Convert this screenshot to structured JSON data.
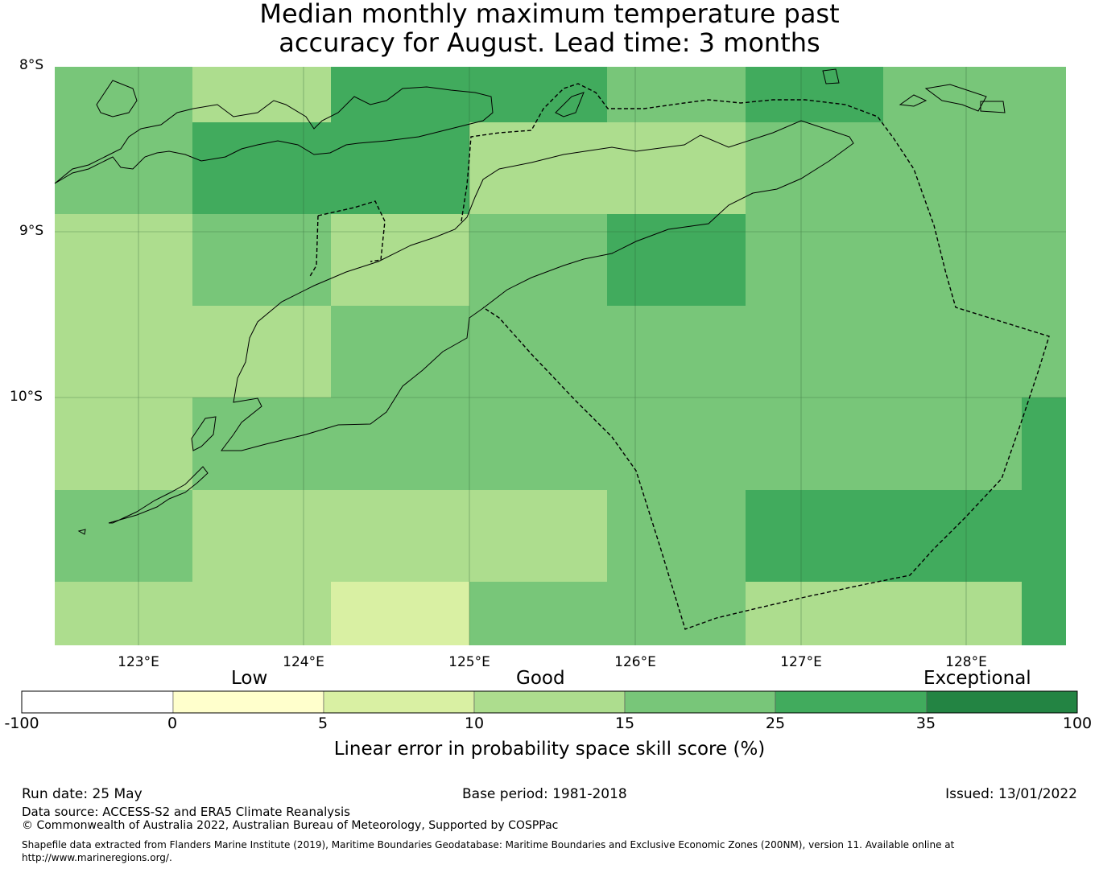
{
  "title": {
    "line1": "Median monthly maximum temperature past",
    "line2": "accuracy for August. Lead time: 3 months"
  },
  "map": {
    "lat_labels": [
      "8°S",
      "9°S",
      "10°S"
    ],
    "lon_labels": [
      "123°E",
      "124°E",
      "125°E",
      "126°E",
      "127°E",
      "128°E"
    ],
    "lat_range": [
      -11.5,
      -8.0
    ],
    "lon_range": [
      122.5,
      128.6
    ],
    "cell_lat_step": 0.5556,
    "cell_lon_step": 0.8333,
    "cell_values_classes_note_index": "row-major from north (top) to south; value = colour class index",
    "grid_class_rows": [
      [
        4,
        3,
        5,
        5,
        4,
        5,
        4,
        4
      ],
      [
        4,
        5,
        5,
        3,
        3,
        4,
        4,
        4
      ],
      [
        3,
        4,
        3,
        4,
        5,
        4,
        4,
        4
      ],
      [
        3,
        3,
        4,
        4,
        4,
        4,
        4,
        4
      ],
      [
        3,
        4,
        4,
        4,
        4,
        4,
        4,
        5
      ],
      [
        4,
        3,
        3,
        3,
        4,
        5,
        5,
        5
      ],
      [
        3,
        3,
        2,
        4,
        4,
        3,
        3,
        5
      ]
    ]
  },
  "colorbar": {
    "categories": [
      "Low",
      "Good",
      "Exceptional"
    ],
    "ticks": [
      "-100",
      "0",
      "5",
      "10",
      "15",
      "25",
      "35",
      "100"
    ],
    "colors": [
      "#ffffff",
      "#ffffcc",
      "#d9f0a3",
      "#addd8e",
      "#78c679",
      "#41ab5d",
      "#238443"
    ],
    "label": "Linear error in probability space skill score (%)"
  },
  "footer": {
    "run_date": "Run date: 25 May",
    "base_period": "Base period: 1981-2018",
    "issued": "Issued: 13/01/2022",
    "data_source": "Data source: ACCESS-S2 and ERA5 Climate Reanalysis",
    "copyright": "© Commonwealth of Australia 2022, Australian Bureau of Meteorology, Supported by COSPPac",
    "shapefile_note": "Shapefile data extracted from Flanders Marine Institute (2019), Maritime Boundaries Geodatabase: Maritime Boundaries and Exclusive Economic Zones (200NM), version 11. Available online at http://www.marineregions.org/."
  }
}
